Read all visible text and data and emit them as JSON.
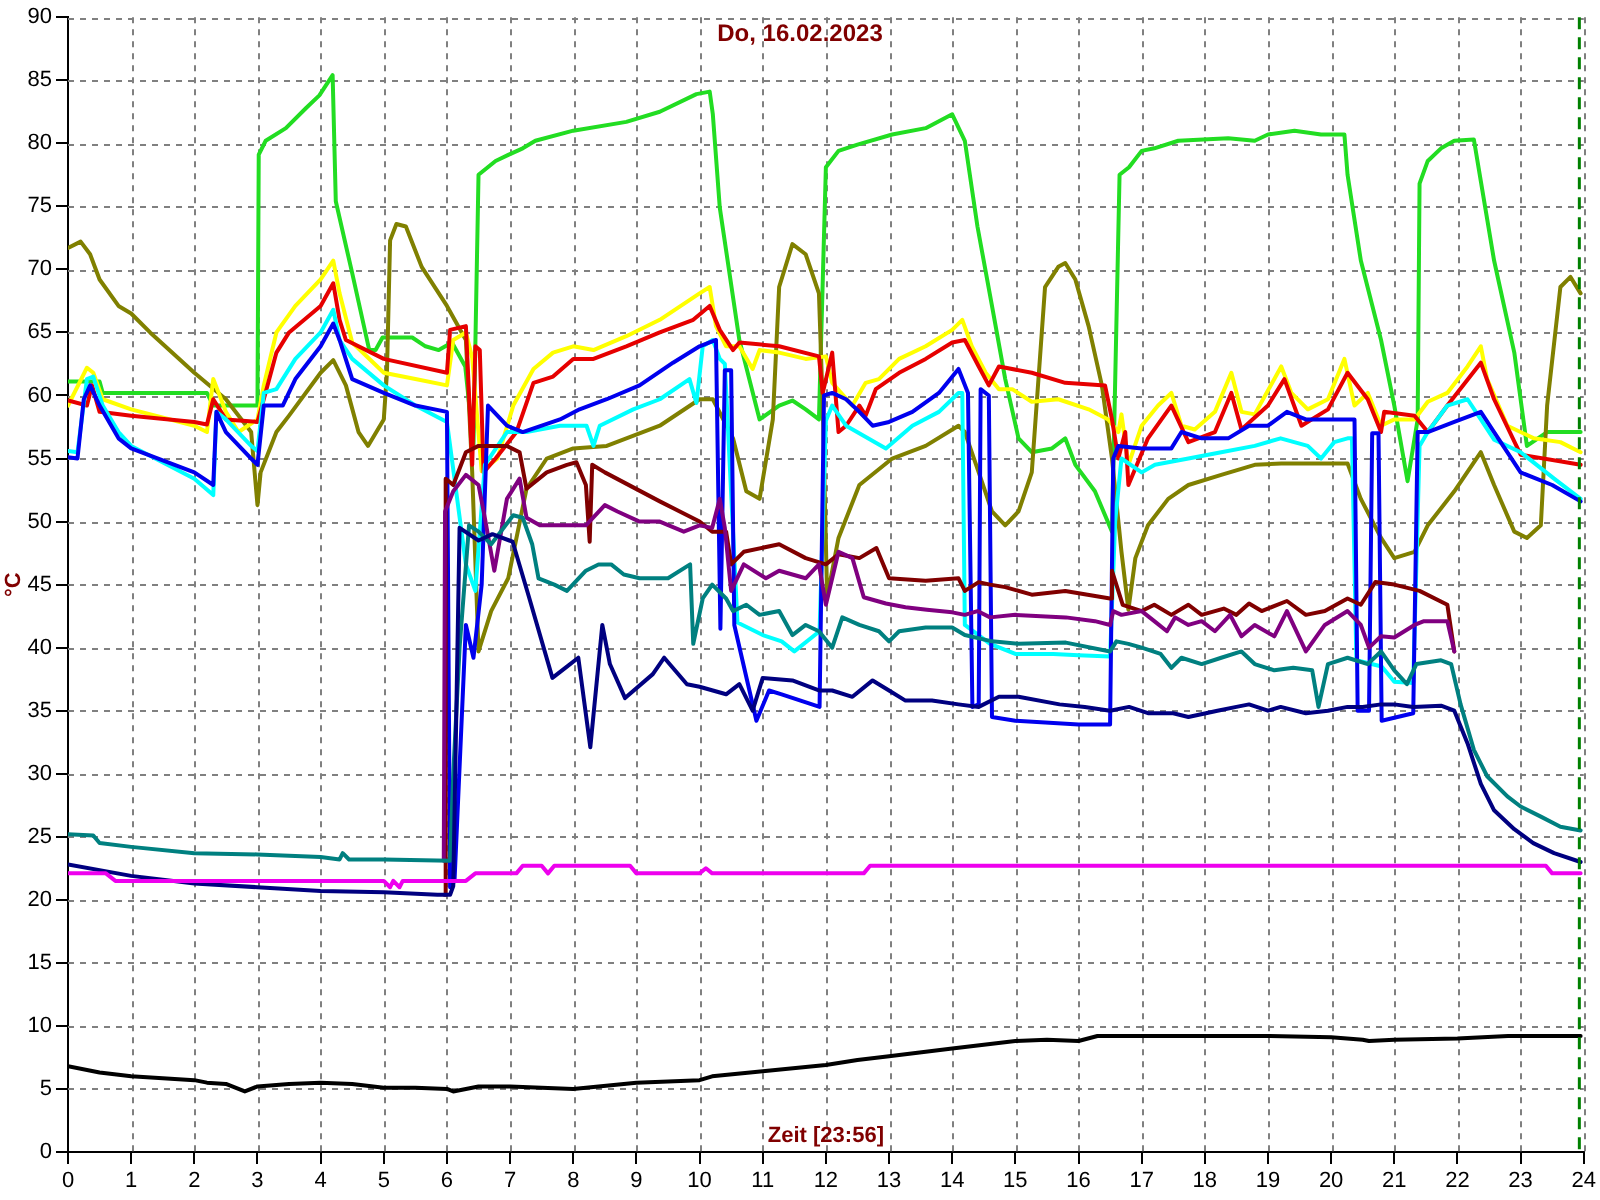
{
  "chart_data": {
    "type": "line",
    "title": "Do, 16.02.2023",
    "xlabel": "Zeit [23:56]",
    "ylabel": "°C",
    "xlim": [
      0,
      24
    ],
    "xticks": [
      0,
      1,
      2,
      3,
      4,
      5,
      6,
      7,
      8,
      9,
      10,
      11,
      12,
      13,
      14,
      15,
      16,
      17,
      18,
      19,
      20,
      21,
      22,
      23,
      24
    ],
    "ylim": [
      0,
      90
    ],
    "yticks": [
      0,
      5,
      10,
      15,
      20,
      25,
      30,
      35,
      40,
      45,
      50,
      55,
      60,
      65,
      70,
      75,
      80,
      85,
      90
    ],
    "grid": true,
    "ref_lines": [
      {
        "axis": "x",
        "value": 23.93,
        "color": "#008000",
        "line_style": "dashed"
      }
    ],
    "series": [
      {
        "color": "#000000",
        "x": [
          0,
          0.5,
          1.0,
          2.0,
          2.2,
          2.5,
          2.8,
          3.0,
          3.5,
          4.0,
          4.5,
          5.0,
          5.5,
          6.0,
          6.1,
          6.5,
          7.0,
          7.5,
          8.0,
          9.0,
          10.0,
          10.2,
          11.0,
          12.0,
          12.5,
          13.0,
          14.0,
          15.0,
          15.5,
          16.0,
          16.3,
          17.0,
          18.0,
          19.0,
          20.0,
          20.5,
          20.6,
          21.0,
          22.0,
          22.8,
          23.95
        ],
        "values": [
          6.8,
          6.3,
          6.0,
          5.7,
          5.5,
          5.4,
          4.8,
          5.2,
          5.4,
          5.5,
          5.4,
          5.1,
          5.1,
          5.0,
          4.8,
          5.2,
          5.2,
          5.1,
          5.0,
          5.5,
          5.7,
          6.0,
          6.4,
          6.9,
          7.3,
          7.6,
          8.2,
          8.8,
          8.9,
          8.8,
          9.2,
          9.2,
          9.2,
          9.2,
          9.1,
          8.9,
          8.8,
          8.9,
          9.0,
          9.2,
          9.2
        ]
      },
      {
        "color": "#ee00ee",
        "x": [
          0,
          0.6,
          0.75,
          5.0,
          5.1,
          5.15,
          5.25,
          5.3,
          6.3,
          6.45,
          7.1,
          7.2,
          7.5,
          7.6,
          7.7,
          8.9,
          9.0,
          10.0,
          10.1,
          10.2,
          12.6,
          12.7,
          23.4,
          23.5,
          23.95
        ],
        "values": [
          22.1,
          22.1,
          21.5,
          21.5,
          21.0,
          21.5,
          21.0,
          21.5,
          21.5,
          22.1,
          22.1,
          22.7,
          22.7,
          22.1,
          22.7,
          22.7,
          22.1,
          22.1,
          22.5,
          22.1,
          22.1,
          22.7,
          22.7,
          22.1,
          22.1
        ]
      },
      {
        "color": "#000080",
        "x": [
          0,
          1.0,
          2.0,
          3.0,
          4.0,
          5.0,
          5.85,
          6.05,
          6.1,
          6.2,
          6.5,
          6.72,
          7.04,
          7.3,
          7.67,
          7.9,
          8.08,
          8.27,
          8.46,
          8.58,
          8.82,
          9.26,
          9.44,
          9.8,
          10.0,
          10.42,
          10.63,
          10.84,
          11.0,
          11.47,
          11.9,
          12.1,
          12.42,
          12.74,
          13.0,
          13.26,
          13.68,
          14.1,
          14.42,
          14.74,
          15.05,
          15.7,
          16.1,
          16.5,
          16.8,
          17.1,
          17.5,
          17.74,
          18.2,
          18.5,
          18.7,
          19.0,
          19.2,
          19.6,
          19.95,
          20.26,
          20.5,
          20.79,
          21.0,
          21.3,
          21.74,
          21.95,
          22.16,
          22.37,
          22.58,
          22.9,
          23.2,
          23.53,
          23.95
        ],
        "values": [
          22.8,
          21.9,
          21.3,
          21.0,
          20.7,
          20.6,
          20.4,
          20.4,
          21.1,
          49.5,
          48.5,
          49.0,
          48.4,
          44.0,
          37.6,
          38.5,
          39.2,
          32.1,
          41.8,
          38.7,
          36.0,
          37.9,
          39.2,
          37.1,
          36.9,
          36.3,
          37.1,
          35.0,
          37.6,
          37.4,
          36.6,
          36.6,
          36.1,
          37.4,
          36.6,
          35.8,
          35.8,
          35.5,
          35.3,
          36.1,
          36.1,
          35.5,
          35.3,
          35.0,
          35.3,
          34.8,
          34.8,
          34.5,
          35.0,
          35.3,
          35.5,
          35.0,
          35.3,
          34.8,
          35.0,
          35.3,
          35.3,
          35.5,
          35.5,
          35.3,
          35.4,
          35.0,
          32.4,
          29.2,
          27.1,
          25.6,
          24.5,
          23.7,
          23.0
        ]
      },
      {
        "color": "#008080",
        "x": [
          0,
          0.4,
          0.5,
          1.0,
          2.0,
          3.0,
          4.0,
          4.3,
          4.35,
          4.45,
          5.0,
          6.05,
          6.1,
          6.2,
          6.35,
          6.5,
          6.7,
          7.05,
          7.2,
          7.35,
          7.45,
          7.7,
          7.9,
          8.2,
          8.4,
          8.6,
          8.8,
          9.05,
          9.5,
          9.85,
          9.9,
          10.05,
          10.2,
          10.42,
          10.53,
          10.74,
          10.95,
          11.26,
          11.47,
          11.68,
          11.89,
          12.1,
          12.26,
          12.53,
          12.84,
          13.0,
          13.16,
          13.58,
          14.0,
          14.2,
          14.63,
          15.05,
          15.8,
          16.5,
          16.6,
          16.79,
          17.0,
          17.3,
          17.47,
          17.63,
          17.95,
          18.26,
          18.58,
          18.79,
          19.1,
          19.4,
          19.7,
          19.8,
          19.95,
          20.26,
          20.58,
          20.79,
          21.0,
          21.2,
          21.35,
          21.74,
          21.9,
          22.05,
          22.26,
          22.47,
          22.79,
          23.0,
          23.32,
          23.63,
          23.95
        ],
        "values": [
          25.2,
          25.1,
          24.5,
          24.2,
          23.7,
          23.6,
          23.4,
          23.2,
          23.7,
          23.2,
          23.2,
          23.1,
          30.0,
          40.0,
          49.7,
          49.2,
          48.2,
          50.5,
          50.3,
          48.2,
          45.5,
          45.0,
          44.5,
          46.1,
          46.6,
          46.6,
          45.8,
          45.5,
          45.5,
          46.6,
          40.3,
          43.9,
          45.0,
          43.9,
          42.9,
          43.4,
          42.6,
          42.9,
          41.0,
          41.8,
          41.3,
          40.0,
          42.4,
          41.8,
          41.3,
          40.5,
          41.3,
          41.6,
          41.6,
          41.0,
          40.5,
          40.3,
          40.4,
          39.7,
          40.5,
          40.3,
          40.0,
          39.5,
          38.4,
          39.2,
          38.7,
          39.2,
          39.7,
          38.7,
          38.2,
          38.4,
          38.2,
          35.3,
          38.7,
          39.2,
          38.7,
          39.7,
          38.2,
          37.1,
          38.7,
          39.0,
          38.7,
          35.5,
          31.9,
          29.8,
          28.2,
          27.4,
          26.6,
          25.8,
          25.5
        ]
      },
      {
        "color": "#800080",
        "x": [
          5.95,
          5.97,
          6.1,
          6.3,
          6.5,
          6.6,
          6.75,
          6.95,
          7.15,
          7.26,
          7.47,
          8.2,
          8.5,
          8.7,
          9.05,
          9.37,
          9.75,
          10.0,
          10.2,
          10.32,
          10.4,
          10.5,
          10.7,
          11.05,
          11.26,
          11.68,
          11.89,
          12.0,
          12.2,
          12.42,
          12.6,
          12.95,
          13.26,
          13.6,
          14.0,
          14.2,
          14.4,
          14.6,
          15.0,
          15.8,
          16.26,
          16.5,
          16.55,
          16.68,
          17.0,
          17.2,
          17.4,
          17.53,
          17.74,
          17.95,
          18.16,
          18.4,
          18.58,
          18.79,
          19.1,
          19.3,
          19.6,
          19.9,
          20.26,
          20.47,
          20.6,
          20.79,
          21.0,
          21.32,
          21.47,
          21.84,
          21.95
        ],
        "values": [
          23.1,
          50.8,
          52.4,
          53.7,
          52.9,
          50.3,
          46.1,
          51.8,
          53.4,
          50.3,
          49.7,
          49.7,
          51.3,
          50.8,
          50.0,
          50.0,
          49.2,
          49.7,
          49.5,
          51.8,
          49.5,
          44.5,
          46.6,
          45.5,
          46.1,
          45.5,
          46.6,
          43.4,
          47.6,
          47.1,
          44.0,
          43.5,
          43.2,
          43.0,
          42.8,
          42.6,
          42.9,
          42.4,
          42.6,
          42.4,
          42.1,
          41.8,
          42.9,
          42.6,
          42.9,
          42.1,
          41.3,
          42.4,
          41.8,
          42.1,
          41.3,
          42.6,
          40.9,
          41.8,
          40.9,
          42.9,
          39.7,
          41.8,
          42.9,
          41.8,
          40.0,
          40.9,
          40.8,
          41.8,
          42.1,
          42.1,
          39.7
        ]
      },
      {
        "color": "#800000",
        "x": [
          5.96,
          5.98,
          6.1,
          6.3,
          6.5,
          6.95,
          7.15,
          7.26,
          7.58,
          7.9,
          8.05,
          8.2,
          8.26,
          8.3,
          8.5,
          9.37,
          10.0,
          10.2,
          10.42,
          10.5,
          10.7,
          11.26,
          11.68,
          12.0,
          12.2,
          12.53,
          12.8,
          13.0,
          13.58,
          14.1,
          14.2,
          14.42,
          14.6,
          14.84,
          15.26,
          15.79,
          16.5,
          16.53,
          16.7,
          17.0,
          17.2,
          17.47,
          17.74,
          17.95,
          18.3,
          18.5,
          18.7,
          18.9,
          19.3,
          19.6,
          19.9,
          20.26,
          20.47,
          20.7,
          21.0,
          21.4,
          21.84,
          21.95
        ],
        "values": [
          20.4,
          53.4,
          52.9,
          55.5,
          56.0,
          56.0,
          55.5,
          52.6,
          53.9,
          54.5,
          54.7,
          52.9,
          48.4,
          54.5,
          53.9,
          51.6,
          50.0,
          49.2,
          49.2,
          46.6,
          47.6,
          48.2,
          47.1,
          46.6,
          47.4,
          47.1,
          47.9,
          45.5,
          45.3,
          45.5,
          44.5,
          45.2,
          45.0,
          44.8,
          44.2,
          44.5,
          43.9,
          46.1,
          43.4,
          42.9,
          43.4,
          42.6,
          43.4,
          42.6,
          43.1,
          42.6,
          43.5,
          42.9,
          43.7,
          42.6,
          42.9,
          43.9,
          43.4,
          45.2,
          45.0,
          44.5,
          43.4,
          39.7
        ]
      },
      {
        "color": "#0000ee",
        "x": [
          0,
          0.15,
          0.25,
          0.35,
          0.5,
          0.8,
          1.0,
          2.0,
          2.3,
          2.35,
          2.5,
          2.9,
          3.0,
          3.1,
          3.4,
          3.6,
          4.0,
          4.2,
          4.3,
          4.5,
          5.0,
          5.5,
          6.0,
          6.05,
          6.12,
          6.3,
          6.42,
          6.55,
          6.65,
          6.95,
          7.2,
          7.79,
          8.1,
          8.53,
          9.05,
          9.58,
          10.0,
          10.26,
          10.33,
          10.4,
          10.5,
          10.55,
          10.9,
          11.1,
          11.3,
          11.9,
          11.97,
          12.1,
          12.32,
          12.53,
          12.74,
          13.0,
          13.37,
          13.79,
          14.1,
          14.25,
          14.32,
          14.42,
          14.45,
          14.58,
          14.63,
          15.0,
          16.0,
          16.5,
          16.55,
          16.63,
          17.0,
          17.47,
          17.63,
          17.95,
          18.37,
          18.7,
          19.0,
          19.3,
          19.6,
          20.26,
          20.37,
          20.42,
          20.6,
          20.65,
          20.75,
          20.8,
          21.3,
          21.37,
          21.53,
          21.95,
          22.37,
          22.58,
          23.0,
          23.5,
          23.95
        ],
        "values": [
          55.1,
          55.0,
          59.7,
          60.8,
          59.2,
          56.6,
          55.8,
          53.9,
          52.9,
          58.7,
          57.1,
          55.0,
          54.5,
          59.2,
          59.2,
          61.3,
          63.9,
          65.7,
          64.4,
          61.3,
          60.2,
          59.2,
          58.7,
          21.0,
          21.5,
          41.8,
          39.2,
          45.0,
          59.2,
          57.6,
          57.1,
          58.1,
          58.9,
          59.7,
          60.8,
          62.6,
          63.9,
          64.4,
          41.5,
          62.0,
          62.0,
          41.8,
          34.2,
          36.6,
          36.3,
          35.3,
          60.0,
          60.2,
          59.7,
          58.7,
          57.6,
          57.9,
          58.7,
          60.2,
          62.1,
          60.2,
          35.3,
          35.5,
          60.5,
          60.0,
          34.5,
          34.2,
          33.9,
          33.9,
          55.0,
          56.0,
          55.8,
          55.8,
          57.1,
          56.6,
          56.6,
          57.6,
          57.6,
          58.7,
          58.1,
          58.1,
          58.1,
          35.0,
          35.0,
          57.0,
          57.0,
          34.2,
          34.8,
          57.1,
          57.1,
          57.9,
          58.7,
          57.1,
          53.9,
          52.9,
          51.6
        ]
      },
      {
        "color": "#00ffff",
        "x": [
          0,
          0.15,
          0.3,
          0.4,
          0.55,
          0.8,
          1.0,
          2.0,
          2.3,
          2.35,
          2.5,
          2.9,
          3.0,
          3.1,
          3.3,
          3.6,
          4.0,
          4.2,
          4.3,
          4.5,
          5.0,
          5.5,
          6.0,
          6.3,
          6.45,
          6.6,
          6.95,
          7.26,
          7.79,
          8.21,
          8.32,
          8.42,
          8.95,
          9.37,
          9.84,
          9.95,
          10.05,
          10.21,
          10.32,
          10.4,
          10.6,
          11.0,
          11.3,
          11.5,
          11.9,
          12.0,
          12.1,
          12.32,
          12.95,
          13.37,
          13.79,
          14.1,
          14.16,
          14.2,
          14.6,
          15.0,
          15.6,
          16.0,
          16.5,
          16.58,
          16.68,
          17.0,
          17.21,
          17.74,
          18.26,
          18.79,
          19.2,
          19.63,
          19.84,
          20.05,
          20.26,
          20.33,
          20.4,
          20.8,
          21.0,
          21.3,
          21.4,
          21.53,
          21.84,
          22.16,
          22.37,
          22.58,
          23.0,
          23.53,
          23.95
        ],
        "values": [
          55.6,
          55.5,
          61.3,
          61.5,
          59.2,
          57.1,
          56.0,
          53.4,
          52.1,
          58.7,
          58.1,
          56.0,
          55.6,
          60.2,
          60.5,
          62.9,
          65.0,
          66.8,
          64.4,
          62.9,
          60.8,
          59.2,
          57.9,
          46.6,
          44.5,
          54.5,
          57.1,
          57.1,
          57.6,
          57.6,
          56.0,
          57.6,
          58.9,
          59.7,
          61.3,
          59.4,
          63.9,
          64.4,
          62.9,
          62.5,
          42.0,
          41.0,
          40.5,
          39.7,
          41.3,
          58.0,
          59.2,
          57.6,
          55.8,
          57.6,
          58.7,
          60.2,
          60.2,
          41.8,
          40.3,
          39.5,
          39.5,
          39.4,
          39.3,
          50.0,
          55.0,
          53.9,
          54.5,
          55.0,
          55.5,
          56.0,
          56.6,
          56.0,
          55.0,
          56.3,
          56.6,
          56.6,
          39.0,
          38.5,
          37.3,
          37.2,
          56.0,
          57.1,
          59.2,
          59.7,
          58.1,
          56.5,
          55.5,
          53.4,
          51.8
        ]
      },
      {
        "color": "#e60000",
        "x": [
          0,
          0.3,
          0.38,
          0.5,
          1.0,
          2.0,
          2.2,
          2.3,
          2.5,
          3.0,
          3.1,
          3.3,
          3.5,
          4.0,
          4.2,
          4.3,
          4.4,
          5.0,
          6.0,
          6.05,
          6.3,
          6.4,
          6.45,
          6.52,
          6.58,
          6.77,
          7.1,
          7.37,
          7.68,
          8.0,
          8.32,
          8.84,
          9.37,
          9.9,
          10.16,
          10.32,
          10.53,
          10.63,
          11.26,
          11.89,
          11.95,
          12.1,
          12.2,
          12.32,
          12.53,
          12.63,
          12.79,
          13.16,
          13.58,
          14.0,
          14.2,
          14.42,
          14.58,
          14.74,
          15.26,
          15.79,
          16.42,
          16.53,
          16.63,
          16.74,
          16.79,
          17.1,
          17.47,
          17.74,
          18.16,
          18.42,
          18.58,
          19.0,
          19.26,
          19.53,
          19.95,
          20.26,
          20.58,
          20.79,
          20.84,
          21.32,
          21.53,
          21.84,
          22.37,
          22.58,
          23.0,
          23.95
        ],
        "values": [
          59.6,
          59.2,
          60.8,
          58.7,
          58.4,
          57.9,
          57.7,
          59.7,
          58.1,
          57.9,
          59.7,
          63.4,
          65.0,
          67.1,
          68.9,
          66.0,
          64.4,
          62.9,
          61.8,
          65.2,
          65.5,
          54.5,
          63.9,
          63.6,
          53.9,
          55.0,
          57.1,
          61.0,
          61.5,
          62.9,
          62.9,
          63.9,
          65.0,
          66.0,
          67.1,
          65.2,
          63.6,
          64.2,
          63.9,
          63.1,
          60.2,
          63.4,
          57.1,
          57.6,
          59.2,
          58.4,
          60.5,
          61.8,
          62.9,
          64.2,
          64.4,
          62.3,
          60.8,
          62.3,
          61.8,
          61.0,
          60.8,
          58.1,
          55.0,
          57.1,
          52.9,
          56.6,
          59.2,
          56.3,
          57.1,
          60.2,
          57.3,
          59.2,
          61.3,
          57.6,
          58.9,
          61.8,
          59.7,
          57.1,
          58.7,
          58.4,
          57.1,
          59.2,
          62.6,
          59.7,
          55.3,
          54.5
        ]
      },
      {
        "color": "#ffff00",
        "x": [
          0,
          0.3,
          0.4,
          0.55,
          1.0,
          2.0,
          2.2,
          2.3,
          2.5,
          2.7,
          3.0,
          3.1,
          3.3,
          3.6,
          4.0,
          4.2,
          4.3,
          4.5,
          5.0,
          5.5,
          6.0,
          6.1,
          6.3,
          6.4,
          6.55,
          6.8,
          7.05,
          7.37,
          7.68,
          8.0,
          8.32,
          8.84,
          9.37,
          10.0,
          10.16,
          10.26,
          10.42,
          10.63,
          10.84,
          10.95,
          11.26,
          11.68,
          12.0,
          12.1,
          12.42,
          12.63,
          12.84,
          13.16,
          13.58,
          14.0,
          14.16,
          14.31,
          14.53,
          14.74,
          14.95,
          15.26,
          15.68,
          16.16,
          16.47,
          16.63,
          16.68,
          16.79,
          17.0,
          17.26,
          17.47,
          17.63,
          17.84,
          18.16,
          18.42,
          18.58,
          18.79,
          19.21,
          19.37,
          19.63,
          19.95,
          20.21,
          20.37,
          20.58,
          20.79,
          21.0,
          21.32,
          21.53,
          21.84,
          22.16,
          22.37,
          22.47,
          22.79,
          23.21,
          23.63,
          23.95
        ],
        "values": [
          59.2,
          62.2,
          61.8,
          59.7,
          58.9,
          57.6,
          57.1,
          61.3,
          58.7,
          57.1,
          58.1,
          60.8,
          65.0,
          67.1,
          69.2,
          70.7,
          68.1,
          64.2,
          61.8,
          61.3,
          60.8,
          64.4,
          65.0,
          63.0,
          54.0,
          55.0,
          59.2,
          62.1,
          63.4,
          63.9,
          63.6,
          64.7,
          66.0,
          68.1,
          68.6,
          65.5,
          63.9,
          63.9,
          62.1,
          63.6,
          63.4,
          62.9,
          63.1,
          61.0,
          59.2,
          61.0,
          61.3,
          62.9,
          63.9,
          65.2,
          66.0,
          63.9,
          61.8,
          60.5,
          60.5,
          59.5,
          59.7,
          58.9,
          58.1,
          57.1,
          58.5,
          54.5,
          57.6,
          59.2,
          60.2,
          57.6,
          57.3,
          58.7,
          61.8,
          58.7,
          58.5,
          62.3,
          60.2,
          58.9,
          59.7,
          62.9,
          59.2,
          60.2,
          57.6,
          58.1,
          58.1,
          59.5,
          60.2,
          62.3,
          63.9,
          61.3,
          57.6,
          56.6,
          56.3,
          55.5
        ]
      },
      {
        "color": "#808000",
        "x": [
          0,
          0.2,
          0.35,
          0.5,
          0.8,
          1.0,
          1.3,
          2.0,
          2.5,
          2.9,
          3.0,
          3.05,
          3.3,
          3.5,
          4.0,
          4.2,
          4.4,
          4.6,
          4.75,
          5.0,
          5.05,
          5.1,
          5.2,
          5.35,
          5.6,
          6.0,
          6.3,
          6.4,
          6.5,
          6.7,
          6.97,
          7.26,
          7.58,
          8.0,
          8.53,
          9.37,
          10.0,
          10.21,
          10.53,
          10.74,
          10.95,
          11.16,
          11.26,
          11.47,
          11.68,
          11.89,
          11.95,
          12.02,
          12.2,
          12.53,
          13.05,
          13.58,
          14.1,
          14.2,
          14.42,
          14.63,
          14.84,
          15.05,
          15.26,
          15.47,
          15.68,
          15.79,
          15.95,
          16.16,
          16.37,
          16.53,
          16.68,
          16.79,
          16.9,
          17.1,
          17.42,
          17.74,
          18.26,
          18.79,
          19.21,
          20.26,
          20.47,
          20.79,
          21.0,
          21.32,
          21.53,
          21.95,
          22.37,
          22.58,
          22.9,
          23.1,
          23.32,
          23.42,
          23.63,
          23.79,
          23.95
        ],
        "values": [
          71.7,
          72.2,
          71.2,
          69.2,
          67.1,
          66.5,
          65.0,
          61.8,
          59.7,
          57.1,
          51.3,
          53.9,
          57.1,
          58.4,
          61.8,
          62.8,
          60.8,
          57.1,
          56.0,
          58.1,
          61.8,
          72.3,
          73.6,
          73.4,
          70.2,
          67.1,
          64.4,
          53.9,
          39.7,
          42.9,
          45.5,
          52.6,
          55.0,
          55.8,
          56.0,
          57.6,
          59.7,
          59.7,
          56.6,
          52.4,
          51.8,
          58.1,
          68.6,
          72.0,
          71.2,
          68.1,
          59.2,
          44.0,
          48.7,
          52.9,
          55.0,
          56.0,
          57.6,
          57.1,
          53.9,
          50.8,
          49.7,
          50.8,
          53.9,
          68.6,
          70.2,
          70.5,
          69.2,
          65.5,
          60.8,
          55.0,
          47.6,
          43.0,
          47.1,
          49.7,
          51.8,
          52.9,
          53.7,
          54.5,
          54.6,
          54.6,
          51.8,
          48.7,
          47.1,
          47.6,
          49.7,
          52.4,
          55.5,
          52.9,
          49.2,
          48.7,
          49.7,
          59.2,
          68.6,
          69.4,
          68.1
        ]
      },
      {
        "color": "#22dd22",
        "x": [
          0,
          0.5,
          0.55,
          2.2,
          2.3,
          3.0,
          3.02,
          3.13,
          3.45,
          3.77,
          3.98,
          4.19,
          4.24,
          4.5,
          4.77,
          4.87,
          4.98,
          5.45,
          5.66,
          5.87,
          6.08,
          6.29,
          6.42,
          6.5,
          6.77,
          6.98,
          7.2,
          7.4,
          8.0,
          8.84,
          9.37,
          9.95,
          10.16,
          10.21,
          10.32,
          10.63,
          10.95,
          11.26,
          11.47,
          11.68,
          11.89,
          12.0,
          12.2,
          12.5,
          13.05,
          13.58,
          14.0,
          14.2,
          14.4,
          14.63,
          14.84,
          15.05,
          15.26,
          15.58,
          15.79,
          15.95,
          16.26,
          16.53,
          16.65,
          16.8,
          17.0,
          17.2,
          17.58,
          18.37,
          18.79,
          19.0,
          19.42,
          19.84,
          20.21,
          20.26,
          20.47,
          20.79,
          21.0,
          21.21,
          21.37,
          21.4,
          21.53,
          21.74,
          21.95,
          22.26,
          22.37,
          22.58,
          22.9,
          23.1,
          23.42,
          23.95
        ],
        "values": [
          61.1,
          61.1,
          60.2,
          60.2,
          59.2,
          59.2,
          79.1,
          80.2,
          81.2,
          82.8,
          83.8,
          85.4,
          75.4,
          69.7,
          63.6,
          63.6,
          64.6,
          64.6,
          63.9,
          63.6,
          64.2,
          62.3,
          56.0,
          77.5,
          78.6,
          79.1,
          79.6,
          80.2,
          81.0,
          81.7,
          82.5,
          83.9,
          84.1,
          82.3,
          74.9,
          64.4,
          58.1,
          59.2,
          59.6,
          58.9,
          58.1,
          78.1,
          79.4,
          79.9,
          80.7,
          81.2,
          82.3,
          80.2,
          73.4,
          67.1,
          61.3,
          56.6,
          55.5,
          55.8,
          56.6,
          54.5,
          52.4,
          49.2,
          77.5,
          78.1,
          79.4,
          79.6,
          80.2,
          80.4,
          80.2,
          80.7,
          81.0,
          80.7,
          80.7,
          77.5,
          70.7,
          64.4,
          59.2,
          53.2,
          58.1,
          76.8,
          78.6,
          79.6,
          80.2,
          80.3,
          77.0,
          70.7,
          63.4,
          56.0,
          57.1,
          57.1
        ]
      }
    ]
  }
}
